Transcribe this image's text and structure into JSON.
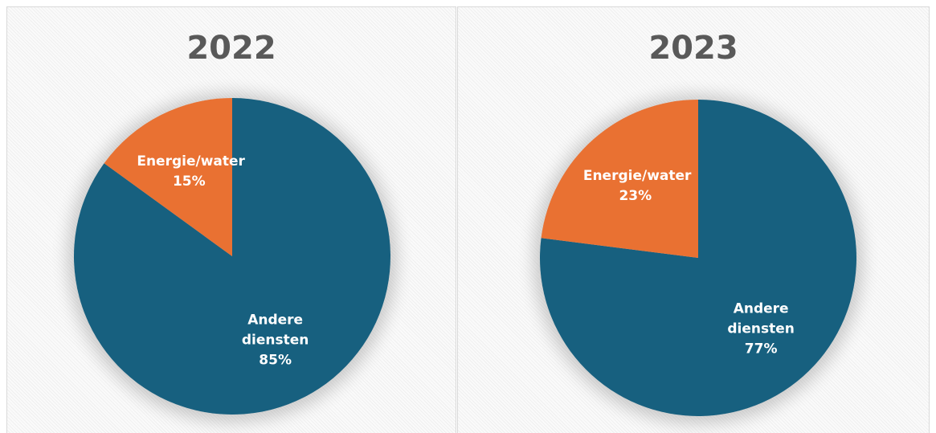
{
  "chart_data": [
    {
      "type": "pie",
      "title": "2022",
      "categories": [
        "Andere diensten",
        "Energie/water"
      ],
      "values": [
        85,
        15
      ],
      "value_labels": [
        "85%",
        "15%"
      ],
      "colors": [
        "#17607f",
        "#e97132"
      ]
    },
    {
      "type": "pie",
      "title": "2023",
      "categories": [
        "Andere diensten",
        "Energie/water"
      ],
      "values": [
        77,
        23
      ],
      "value_labels": [
        "77%",
        "23%"
      ],
      "colors": [
        "#17607f",
        "#e97132"
      ]
    }
  ]
}
